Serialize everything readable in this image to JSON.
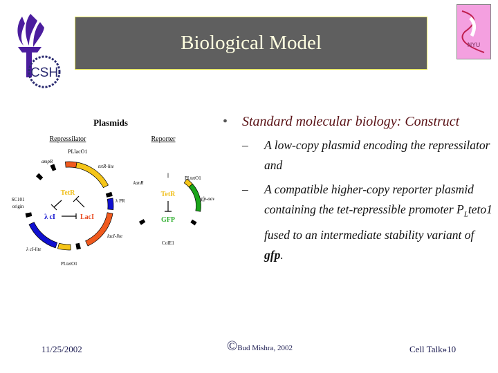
{
  "slide": {
    "title": "Biological Model",
    "logos": {
      "left": "CSH",
      "right": "NYU"
    },
    "bullet": "Standard molecular biology: Construct",
    "subitems": [
      {
        "text": "A low-copy plasmid encoding the repressilator and"
      },
      {
        "pre": "A compatible higher-copy reporter plasmid containing the tet-repressible promoter P",
        "sub": "L",
        "mid": "teto1 fused to an intermediate stability variant of ",
        "bold": "gfp",
        "post": "."
      }
    ],
    "footer": {
      "date": "11/25/2002",
      "copyright_symbol": "©",
      "copyright": "Bud Mishra, 2002",
      "talk": "Cell Talk",
      "separator": "»",
      "page": "10"
    }
  },
  "diagram": {
    "title": "Plasmids",
    "repressilator": {
      "label": "Repressilator",
      "genes": {
        "ampR": "ampR",
        "tetR": "tetR-lite",
        "lacI": "lacI-lite",
        "cI": "λ cI-lite"
      },
      "promoters": {
        "plac": "PLlacO1",
        "pr": "λ PR",
        "ptet": "PLtetO1"
      },
      "origin": [
        "SC101",
        "origin"
      ],
      "proteins": {
        "tetr": "TetR",
        "ci": "λ cI",
        "laci": "LacI"
      }
    },
    "reporter": {
      "label": "Reporter",
      "kan": "kanR",
      "promoter": "PLtetO1",
      "gene": "gfp-aav",
      "origin": "ColE1",
      "proteins": {
        "tetr": "TetR",
        "gfp": "GFP"
      }
    },
    "colors": {
      "yellow": "#f5c518",
      "orange": "#f05a1e",
      "blue": "#1010d0",
      "green": "#1aa51a",
      "tetr_text": "#f0c020",
      "laci_text": "#e84a20",
      "gfp_text": "#30b030"
    }
  }
}
